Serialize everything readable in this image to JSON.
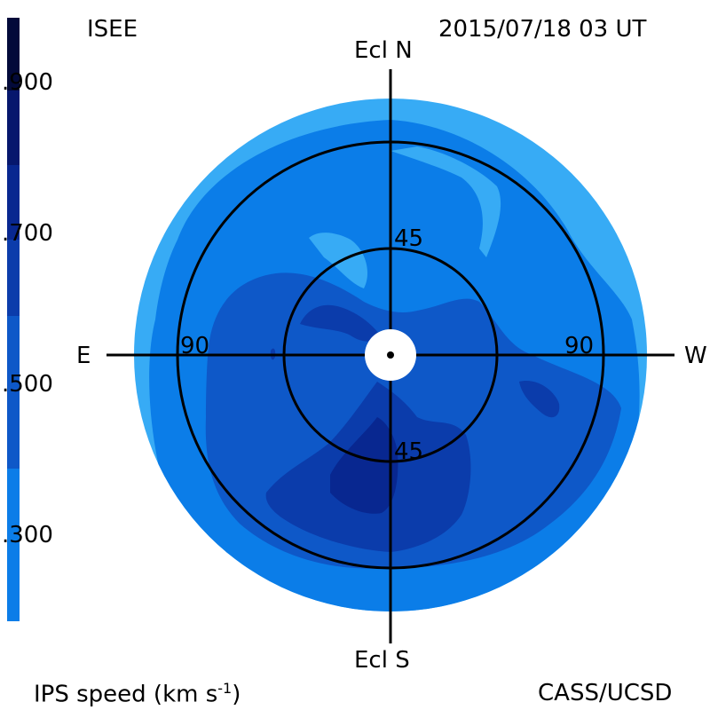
{
  "header": {
    "institution": "ISEE",
    "datetime": "2015/07/18 03 UT"
  },
  "footer": {
    "quantity_label": "IPS speed (km s",
    "quantity_exp": "-1",
    "quantity_close": ")",
    "credit": "CASS/UCSD"
  },
  "colorbar": {
    "ticks": [
      ".900",
      ".700",
      ".500",
      ".300"
    ],
    "levels": [
      {
        "min": 200,
        "max": 300,
        "color": "#9fd8f9"
      },
      {
        "min": 300,
        "max": 400,
        "color": "#37abf5"
      },
      {
        "min": 400,
        "max": 500,
        "color": "#0b7de8"
      },
      {
        "min": 500,
        "max": 600,
        "color": "#0e58c8"
      },
      {
        "min": 600,
        "max": 700,
        "color": "#0b3cab"
      },
      {
        "min": 700,
        "max": 800,
        "color": "#082790"
      },
      {
        "min": 800,
        "max": 900,
        "color": "#06176d"
      },
      {
        "min": 900,
        "max": 1000,
        "color": "#030a3a"
      }
    ]
  },
  "map": {
    "axis_labels": {
      "north": "Ecl N",
      "south": "Ecl S",
      "east": "E",
      "west": "W"
    },
    "ring_labels": {
      "north_45": "45",
      "south_45": "45",
      "east_90": "90",
      "west_90": "90"
    }
  }
}
